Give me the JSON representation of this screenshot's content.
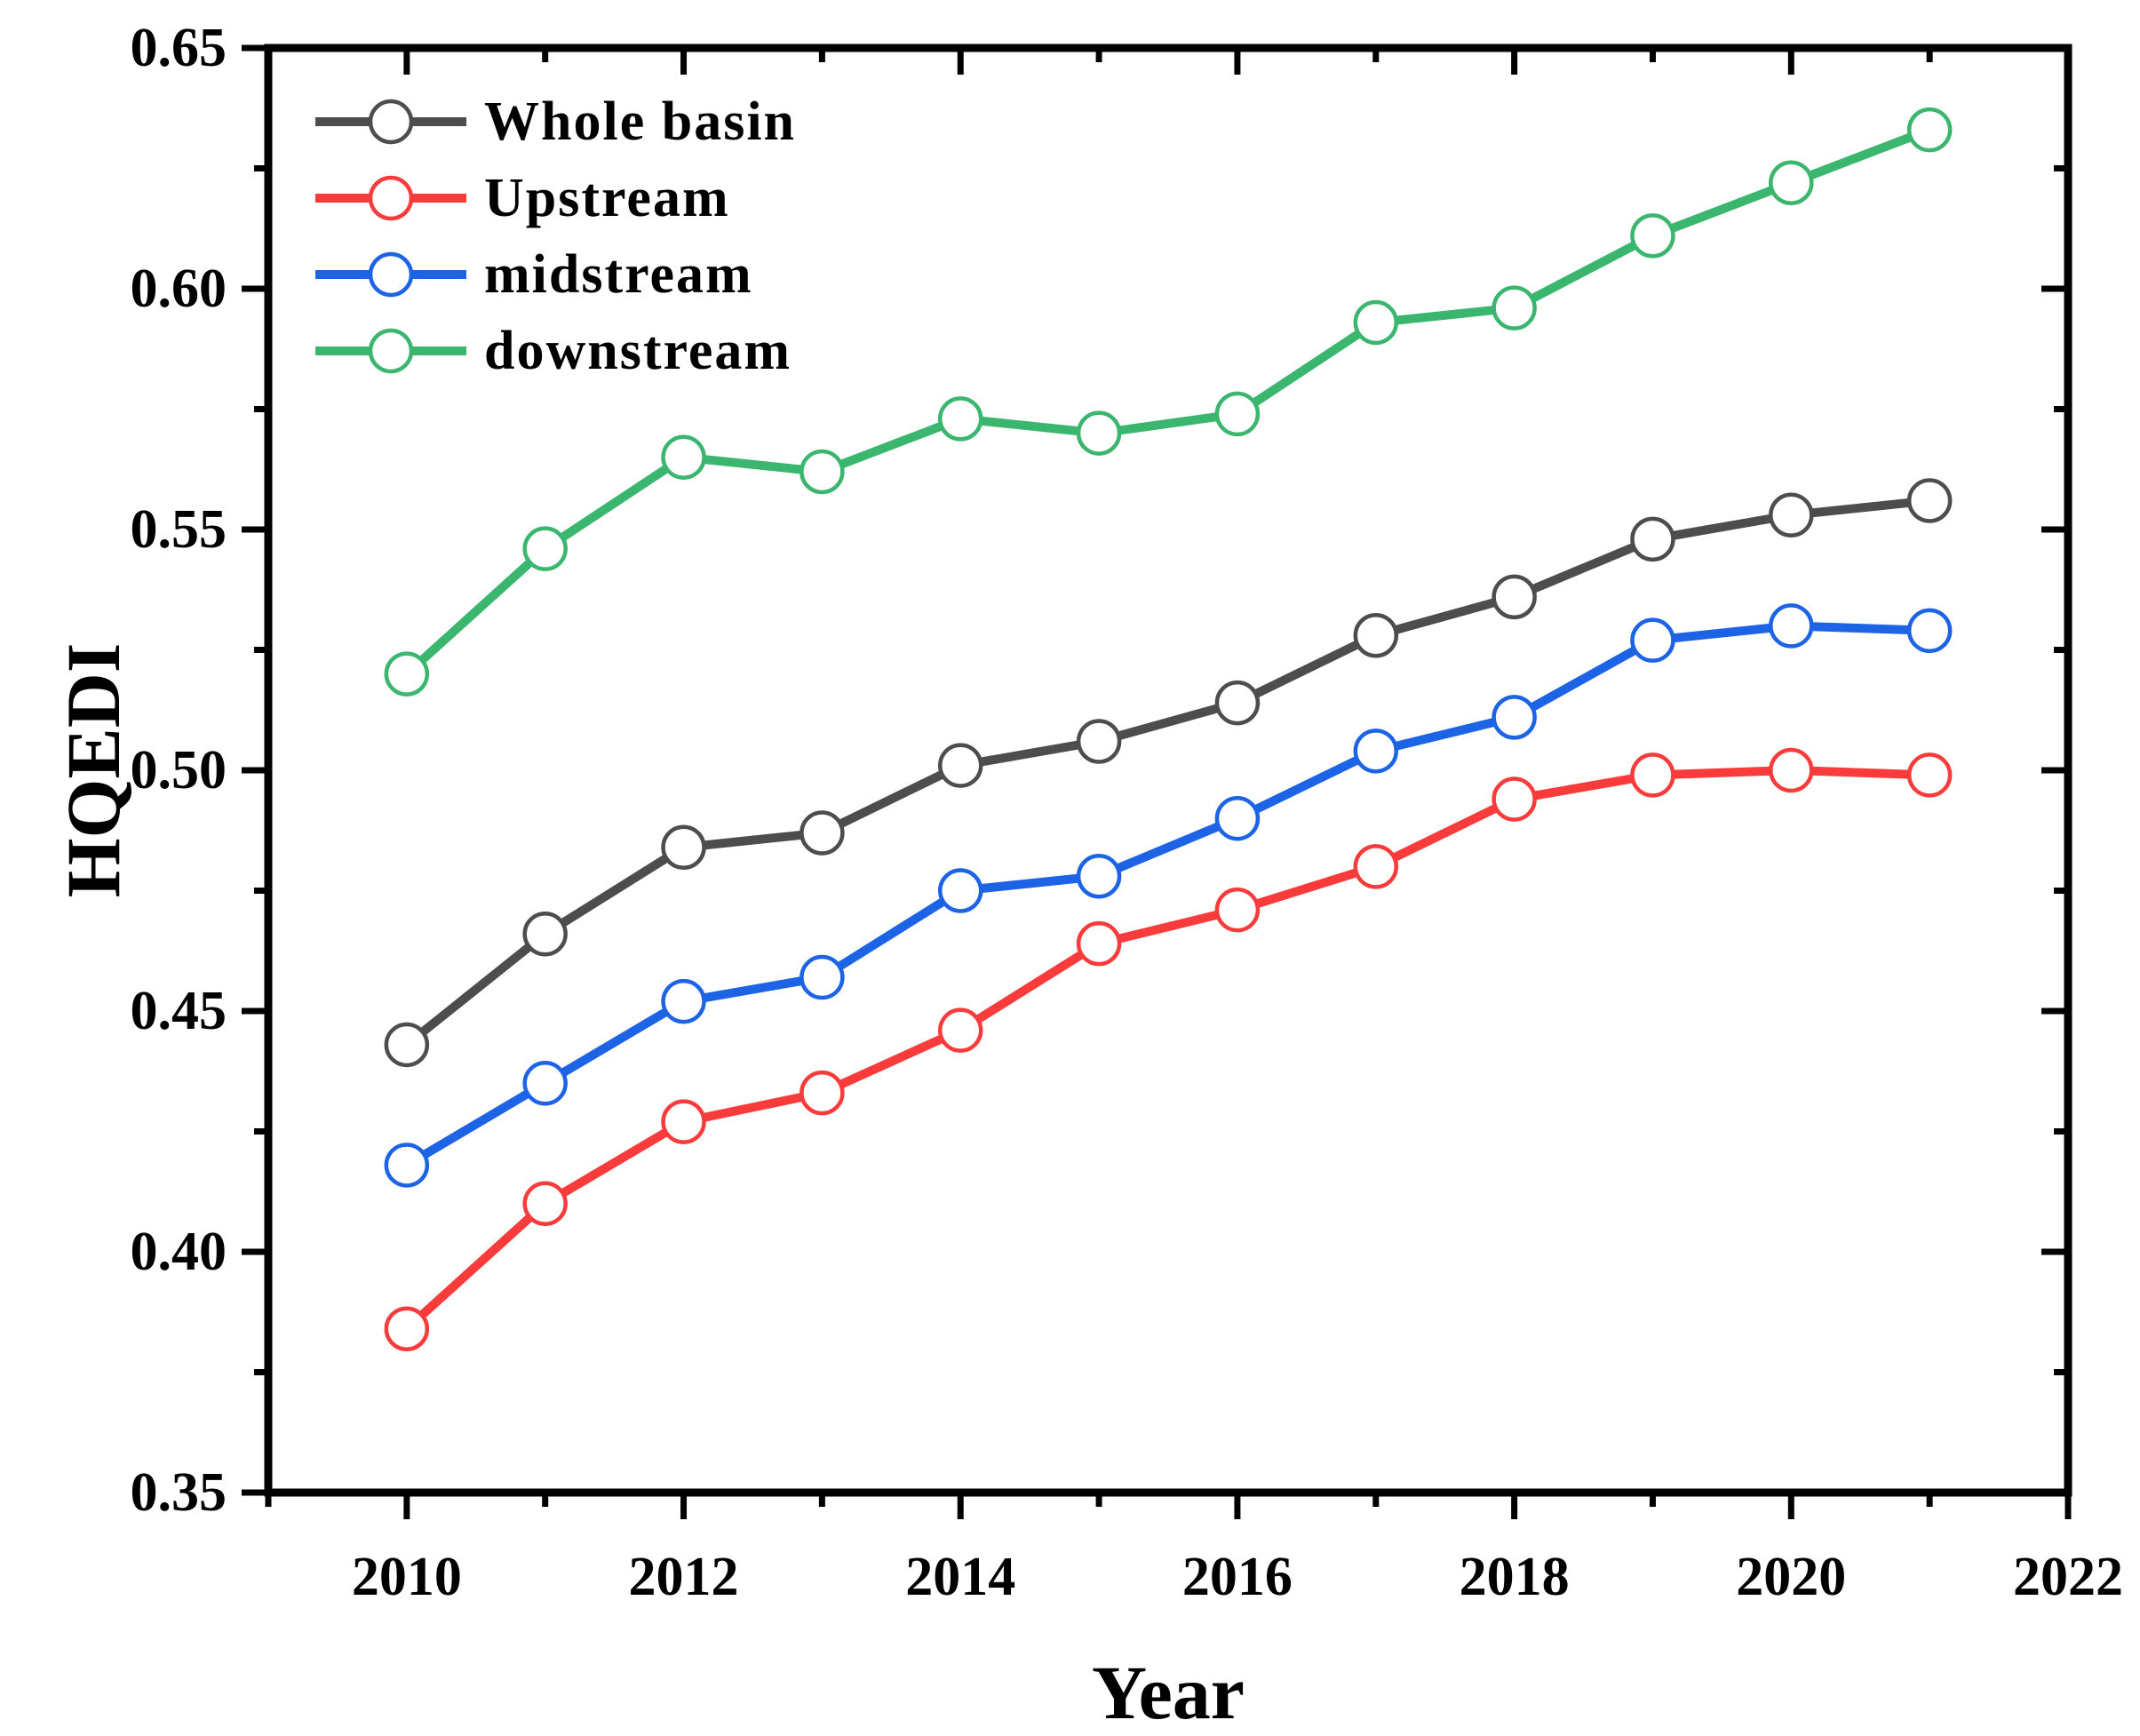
{
  "figure": {
    "background": "#ffffff",
    "frame_color": "#000000"
  },
  "chart_data": {
    "type": "line",
    "title": "",
    "xlabel": "Year",
    "ylabel": "HQEDI",
    "xlim": [
      2009,
      2022
    ],
    "ylim": [
      0.35,
      0.65
    ],
    "grid": false,
    "legend_position": "top-left",
    "marker": "circle",
    "x": [
      2010,
      2011,
      2012,
      2013,
      2014,
      2015,
      2016,
      2017,
      2018,
      2019,
      2020,
      2021
    ],
    "xtick_values": [
      2010,
      2012,
      2014,
      2016,
      2018,
      2020,
      2022
    ],
    "xtick_labels": [
      "2010",
      "2012",
      "2014",
      "2016",
      "2018",
      "2020",
      "2022"
    ],
    "xminor_values": [
      2009,
      2011,
      2013,
      2015,
      2017,
      2019,
      2021
    ],
    "ytick_values": [
      0.35,
      0.4,
      0.45,
      0.5,
      0.55,
      0.6,
      0.65
    ],
    "ytick_labels": [
      "0.35",
      "0.40",
      "0.45",
      "0.50",
      "0.55",
      "0.60",
      "0.65"
    ],
    "yminor_values": [
      0.375,
      0.425,
      0.475,
      0.525,
      0.575,
      0.625
    ],
    "series": [
      {
        "name": "Whole basin",
        "color": "#4d4d4d",
        "marker": "circle",
        "values": [
          0.443,
          0.466,
          0.484,
          0.487,
          0.501,
          0.506,
          0.514,
          0.528,
          0.536,
          0.548,
          0.553,
          0.556
        ]
      },
      {
        "name": "Upstream",
        "color": "#fa3b3b",
        "marker": "circle",
        "values": [
          0.384,
          0.41,
          0.427,
          0.433,
          0.446,
          0.464,
          0.471,
          0.48,
          0.494,
          0.499,
          0.5,
          0.499
        ]
      },
      {
        "name": "midstream",
        "color": "#1c63e6",
        "marker": "circle",
        "values": [
          0.418,
          0.435,
          0.452,
          0.457,
          0.475,
          0.478,
          0.49,
          0.504,
          0.511,
          0.527,
          0.53,
          0.529
        ]
      },
      {
        "name": "downstream",
        "color": "#3ab66e",
        "marker": "circle",
        "values": [
          0.52,
          0.546,
          0.565,
          0.562,
          0.573,
          0.57,
          0.574,
          0.593,
          0.596,
          0.611,
          0.622,
          0.633
        ]
      }
    ]
  }
}
